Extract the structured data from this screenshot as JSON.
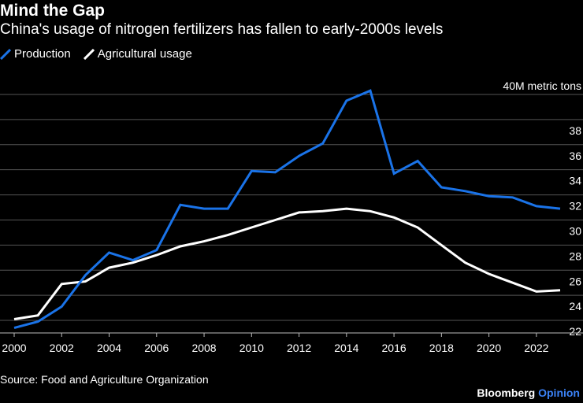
{
  "header": {
    "title": "Mind the Gap",
    "subtitle": "China's usage of nitrogen fertilizers has fallen to early-2000s levels"
  },
  "footer": {
    "source": "Source: Food and Agriculture Organization",
    "brand_primary": "Bloomberg",
    "brand_secondary": "Opinion"
  },
  "colors": {
    "background": "#000000",
    "production": "#1a73e8",
    "usage": "#ffffff",
    "grid": "#555555"
  },
  "chart_data": {
    "type": "line",
    "title": "Mind the Gap",
    "subtitle": "China's usage of nitrogen fertilizers has fallen to early-2000s levels",
    "xlabel": "",
    "ylabel": "40M metric tons",
    "xlim": [
      2000,
      2023
    ],
    "ylim": [
      21,
      40.5
    ],
    "x_ticks": [
      2000,
      2002,
      2004,
      2006,
      2008,
      2010,
      2012,
      2014,
      2016,
      2018,
      2020,
      2022
    ],
    "y_ticks": [
      22,
      24,
      26,
      28,
      30,
      32,
      34,
      36,
      38
    ],
    "y_top_label": "40M metric tons",
    "grid": true,
    "legend_placement": "top-left",
    "x": [
      2000,
      2001,
      2002,
      2003,
      2004,
      2005,
      2006,
      2007,
      2008,
      2009,
      2010,
      2011,
      2012,
      2013,
      2014,
      2015,
      2016,
      2017,
      2018,
      2019,
      2020,
      2021,
      2022,
      2023
    ],
    "series": [
      {
        "name": "Production",
        "color": "#1a73e8",
        "values": [
          21.4,
          21.9,
          23.1,
          25.6,
          27.4,
          26.8,
          27.6,
          31.2,
          30.9,
          30.9,
          33.9,
          33.8,
          35.1,
          36.1,
          39.5,
          40.3,
          33.7,
          34.7,
          32.6,
          32.3,
          31.9,
          31.8,
          31.1,
          30.9
        ]
      },
      {
        "name": "Agricultural usage",
        "color": "#ffffff",
        "values": [
          22.1,
          22.4,
          24.9,
          25.1,
          26.2,
          26.6,
          27.2,
          27.9,
          28.3,
          28.8,
          29.4,
          30.0,
          30.6,
          30.7,
          30.9,
          30.7,
          30.2,
          29.4,
          28.0,
          26.6,
          25.7,
          25.0,
          24.3,
          24.4
        ]
      }
    ]
  }
}
